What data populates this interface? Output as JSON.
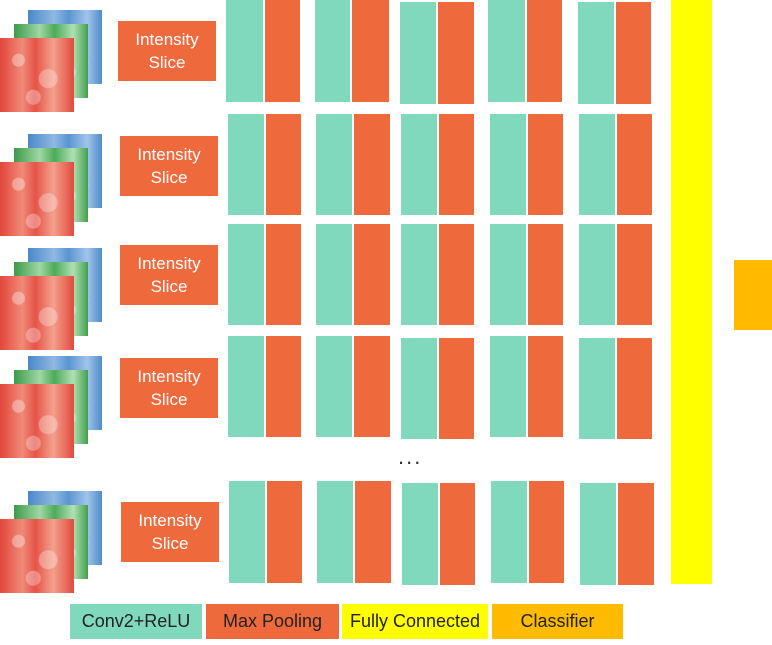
{
  "slice_label_line1": "Intensity",
  "slice_label_line2": "Slice",
  "ellipsis": "...",
  "legend": {
    "conv": "Conv2+ReLU",
    "pool": "Max Pooling",
    "fc": "Fully Connected",
    "classifier": "Classifier"
  },
  "colors": {
    "conv": "#80d8bd",
    "pool": "#ee6a3d",
    "fc": "#ffff00",
    "classifier": "#ffbb00"
  }
}
